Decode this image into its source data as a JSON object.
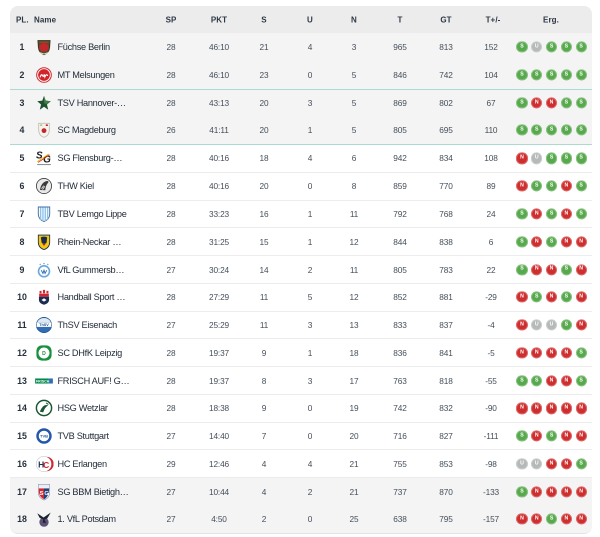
{
  "table": {
    "columns": [
      {
        "key": "pl",
        "label": "PL."
      },
      {
        "key": "name",
        "label": "Name"
      },
      {
        "key": "sp",
        "label": "SP"
      },
      {
        "key": "pkt",
        "label": "PKT"
      },
      {
        "key": "s",
        "label": "S"
      },
      {
        "key": "u",
        "label": "U"
      },
      {
        "key": "n",
        "label": "N"
      },
      {
        "key": "t",
        "label": "T"
      },
      {
        "key": "gt",
        "label": "GT"
      },
      {
        "key": "diff",
        "label": "T+/-"
      },
      {
        "key": "erg",
        "label": "Erg."
      }
    ],
    "result_colors": {
      "S": "#58a94d",
      "U": "#b6b9b9",
      "N": "#cf2e2e"
    },
    "zone_background": "#f4f4f4",
    "divider_teal": "#abd9d3",
    "divider_gray": "#ececec",
    "rows": [
      {
        "pl": "1",
        "name": "Füchse Berlin",
        "logo": "fuechse-berlin",
        "sp": "28",
        "pkt": "46:10",
        "s": "21",
        "u": "4",
        "n": "3",
        "t": "965",
        "gt": "813",
        "diff": "152",
        "erg": [
          "S",
          "U",
          "S",
          "S",
          "S"
        ],
        "zone": "gray",
        "divider": "none"
      },
      {
        "pl": "2",
        "name": "MT Melsungen",
        "logo": "mt-melsungen",
        "sp": "28",
        "pkt": "46:10",
        "s": "23",
        "u": "0",
        "n": "5",
        "t": "846",
        "gt": "742",
        "diff": "104",
        "erg": [
          "S",
          "S",
          "S",
          "S",
          "S"
        ],
        "zone": "gray",
        "divider": "none"
      },
      {
        "pl": "3",
        "name": "TSV Hannover-…",
        "logo": "tsv-hannover",
        "sp": "28",
        "pkt": "43:13",
        "s": "20",
        "u": "3",
        "n": "5",
        "t": "869",
        "gt": "802",
        "diff": "67",
        "erg": [
          "S",
          "N",
          "N",
          "S",
          "S"
        ],
        "zone": "gray",
        "divider": "teal"
      },
      {
        "pl": "4",
        "name": "SC Magdeburg",
        "logo": "sc-magdeburg",
        "sp": "26",
        "pkt": "41:11",
        "s": "20",
        "u": "1",
        "n": "5",
        "t": "805",
        "gt": "695",
        "diff": "110",
        "erg": [
          "S",
          "S",
          "S",
          "S",
          "S"
        ],
        "zone": "gray",
        "divider": "none"
      },
      {
        "pl": "5",
        "name": "SG Flensburg-…",
        "logo": "sg-flensburg",
        "sp": "28",
        "pkt": "40:16",
        "s": "18",
        "u": "4",
        "n": "6",
        "t": "942",
        "gt": "834",
        "diff": "108",
        "erg": [
          "N",
          "U",
          "S",
          "S",
          "S"
        ],
        "zone": "white",
        "divider": "teal"
      },
      {
        "pl": "6",
        "name": "THW Kiel",
        "logo": "thw-kiel",
        "sp": "28",
        "pkt": "40:16",
        "s": "20",
        "u": "0",
        "n": "8",
        "t": "859",
        "gt": "770",
        "diff": "89",
        "erg": [
          "N",
          "S",
          "S",
          "N",
          "S"
        ],
        "zone": "white",
        "divider": "gray"
      },
      {
        "pl": "7",
        "name": "TBV Lemgo Lippe",
        "logo": "tbv-lemgo",
        "sp": "28",
        "pkt": "33:23",
        "s": "16",
        "u": "1",
        "n": "11",
        "t": "792",
        "gt": "768",
        "diff": "24",
        "erg": [
          "S",
          "N",
          "S",
          "N",
          "S"
        ],
        "zone": "white",
        "divider": "gray"
      },
      {
        "pl": "8",
        "name": "Rhein-Neckar …",
        "logo": "rhein-neckar-loewen",
        "sp": "28",
        "pkt": "31:25",
        "s": "15",
        "u": "1",
        "n": "12",
        "t": "844",
        "gt": "838",
        "diff": "6",
        "erg": [
          "S",
          "N",
          "S",
          "N",
          "N"
        ],
        "zone": "white",
        "divider": "gray"
      },
      {
        "pl": "9",
        "name": "VfL Gummersb…",
        "logo": "vfl-gummersbach",
        "sp": "27",
        "pkt": "30:24",
        "s": "14",
        "u": "2",
        "n": "11",
        "t": "805",
        "gt": "783",
        "diff": "22",
        "erg": [
          "S",
          "N",
          "N",
          "S",
          "N"
        ],
        "zone": "white",
        "divider": "gray"
      },
      {
        "pl": "10",
        "name": "Handball Sport …",
        "logo": "hsv-hamburg",
        "sp": "28",
        "pkt": "27:29",
        "s": "11",
        "u": "5",
        "n": "12",
        "t": "852",
        "gt": "881",
        "diff": "-29",
        "erg": [
          "N",
          "S",
          "N",
          "S",
          "N"
        ],
        "zone": "white",
        "divider": "gray"
      },
      {
        "pl": "11",
        "name": "ThSV Eisenach",
        "logo": "thsv-eisenach",
        "sp": "27",
        "pkt": "25:29",
        "s": "11",
        "u": "3",
        "n": "13",
        "t": "833",
        "gt": "837",
        "diff": "-4",
        "erg": [
          "N",
          "U",
          "U",
          "S",
          "N"
        ],
        "zone": "white",
        "divider": "gray"
      },
      {
        "pl": "12",
        "name": "SC DHfK Leipzig",
        "logo": "dhfk-leipzig",
        "sp": "28",
        "pkt": "19:37",
        "s": "9",
        "u": "1",
        "n": "18",
        "t": "836",
        "gt": "841",
        "diff": "-5",
        "erg": [
          "N",
          "N",
          "N",
          "N",
          "S"
        ],
        "zone": "white",
        "divider": "gray"
      },
      {
        "pl": "13",
        "name": "FRISCH AUF! G…",
        "logo": "frisch-auf",
        "sp": "28",
        "pkt": "19:37",
        "s": "8",
        "u": "3",
        "n": "17",
        "t": "763",
        "gt": "818",
        "diff": "-55",
        "erg": [
          "S",
          "S",
          "N",
          "N",
          "S"
        ],
        "zone": "white",
        "divider": "gray"
      },
      {
        "pl": "14",
        "name": "HSG Wetzlar",
        "logo": "hsg-wetzlar",
        "sp": "28",
        "pkt": "18:38",
        "s": "9",
        "u": "0",
        "n": "19",
        "t": "742",
        "gt": "832",
        "diff": "-90",
        "erg": [
          "N",
          "N",
          "N",
          "N",
          "N"
        ],
        "zone": "white",
        "divider": "gray"
      },
      {
        "pl": "15",
        "name": "TVB Stuttgart",
        "logo": "tvb-stuttgart",
        "sp": "27",
        "pkt": "14:40",
        "s": "7",
        "u": "0",
        "n": "20",
        "t": "716",
        "gt": "827",
        "diff": "-111",
        "erg": [
          "S",
          "N",
          "S",
          "N",
          "N"
        ],
        "zone": "white",
        "divider": "gray"
      },
      {
        "pl": "16",
        "name": "HC Erlangen",
        "logo": "hc-erlangen",
        "sp": "29",
        "pkt": "12:46",
        "s": "4",
        "u": "4",
        "n": "21",
        "t": "755",
        "gt": "853",
        "diff": "-98",
        "erg": [
          "U",
          "U",
          "N",
          "N",
          "S"
        ],
        "zone": "white",
        "divider": "gray"
      },
      {
        "pl": "17",
        "name": "SG BBM Bietigh…",
        "logo": "sg-bbm-bietigheim",
        "sp": "27",
        "pkt": "10:44",
        "s": "4",
        "u": "2",
        "n": "21",
        "t": "737",
        "gt": "870",
        "diff": "-133",
        "erg": [
          "S",
          "N",
          "N",
          "N",
          "N"
        ],
        "zone": "gray",
        "divider": "gray"
      },
      {
        "pl": "18",
        "name": "1. VfL Potsdam",
        "logo": "vfl-potsdam",
        "sp": "27",
        "pkt": "4:50",
        "s": "2",
        "u": "0",
        "n": "25",
        "t": "638",
        "gt": "795",
        "diff": "-157",
        "erg": [
          "N",
          "N",
          "S",
          "N",
          "N"
        ],
        "zone": "gray",
        "divider": "none"
      }
    ]
  },
  "logos": {
    "fuechse-berlin": "<svg viewBox='0 0 18 18'><path d='M3.2 2.8 L14.8 2.8 L14.4 9.2 Q14 14.4 9 16.4 Q4 14.4 3.6 9.2 Z' fill='#4a5226' stroke='#2d2d1c' stroke-width='0.7'/><path d='M5.4 13.6 Q9 16.6 12.6 13.6 L12 15 Q9 17 6 15 Z' fill='#e9e5da'/><ellipse cx='9' cy='9.6' rx='4.7' ry='4' fill='#c1272d'/><path d='M4.6 3.9 h8.8 v1.3 h-8.8 z' fill='#b5342c'/></svg>",
    "mt-melsungen": "<svg viewBox='0 0 18 18'><circle cx='9' cy='9' r='7.4' fill='#d2232a'/><circle cx='9' cy='9' r='6' fill='none' stroke='#ffffff' stroke-width='0.9'/><path d='M5.4 10.8 Q6.6 7.4 7.6 9.6 Q8.6 11.4 9.2 8.4 L9.8 10.8 Q11 7.6 12.4 9.4' stroke='#ffffff' stroke-width='1.1' fill='none' stroke-linecap='round'/></svg>",
    "tsv-hannover": "<svg viewBox='0 0 18 18'><path d='M9 2.2 L10.6 6.8 L15.4 7.4 L11.8 10.4 L13 15.4 L9 12.6 L5 15.4 L6.2 10.4 L2.6 7.4 L7.4 6.8 Z' fill='#1e5130'/><path d='M9 2.2 L10.6 6.8 L15.4 7.4 L11.8 10.4 L9 9 Z' fill='#3f7d46'/></svg>",
    "sc-magdeburg": "<svg viewBox='0 0 18 18'><path d='M4 2.6 H14 V9 Q14 14.3 9 16 Q4 14.3 4 9 Z' fill='#f5f3ed' stroke='#b9b5a9' stroke-width='0.7'/><circle cx='9' cy='9.6' r='2.3' fill='#c1272d'/><rect x='5.3' y='3.7' width='2' height='1.5' fill='#b9c26f'/><rect x='10.7' y='3.7' width='2' height='1.5' fill='#c1272d'/></svg>",
    "sg-flensburg": "<svg viewBox='0 0 18 18'><text x='1.4' y='9.6' font-size='9.4' font-weight='bold' font-style='italic' fill='#1b1b1b' font-family='sans-serif'>S</text><text x='8.2' y='13.4' font-size='9.4' font-weight='bold' font-style='italic' fill='#1b1b1b' font-family='sans-serif'>G</text><path d='M2.6 12.4 L13.6 5.2' stroke='#f0b400' stroke-width='0.9'/><path d='M3.4 13.2 L14.4 6' stroke='#cc2222' stroke-width='0.7'/><path d='M2.5 14.8 h13 v0.9 h-13 z' fill='#1b1b1b' opacity='0.55'/></svg>",
    "thw-kiel": "<svg viewBox='0 0 18 18'><circle cx='9' cy='9' r='7.2' fill='#e9e9e9' stroke='#3c3c3c' stroke-width='0.8'/><path d='M5.2 12.8 Q5.8 7.6 9 5.4 Q12 3.6 13 4.6 Q13.6 5.4 12.2 6.8 Q10.6 8.6 10.2 13 Z' fill='#3a3a3a'/><path d='M6.6 11.5 L8.8 8.6 M7.6 12.4 L9.8 9.2' stroke='#e9e9e9' stroke-width='0.8'/></svg>",
    "tbv-lemgo": "<svg viewBox='0 0 18 18'><path d='M3.6 2.4 H14.4 V9 Q14.4 14 9 16.2 Q3.6 14 3.6 9 Z' fill='#ffffff' stroke='#3f6fa8' stroke-width='0.9'/><path d='M5.8 2.8 V14.6 M8 2.8 V15.8 M10.2 2.8 V15.8 M12.4 2.8 V14.2' stroke='#8fc2e8' stroke-width='1.3'/></svg>",
    "rhein-neckar-loewen": "<svg viewBox='0 0 18 18'><path d='M3.6 2.4 H14.4 V9 Q14.4 14.4 9 16.2 Q3.6 14.4 3.6 9 Z' fill='#f3c812' stroke='#1a2c4e' stroke-width='0.8'/><path d='M6 4.6 Q9 3.2 12 4.6 L11.4 9.8 Q9 11.8 6.8 9.8 Z' fill='#1a2c4e'/><path d='M7.4 10.6 L9 12.8 L10.6 10.6' fill='#c1272d'/></svg>",
    "vfl-gummersbach": "<svg viewBox='0 0 18 18'><circle cx='9' cy='10.2' r='5.2' fill='#ffffff' stroke='#6aa7d8' stroke-width='1.5'/><path d='M6.4 9.2 L8 12.2 L9 9.2 L10 12.2 L11.6 9.2' stroke='#2f6db5' stroke-width='0.9' fill='none'/><circle cx='5.4' cy='3.8' r='0.7' fill='#6aa7d8'/><circle cx='9' cy='3' r='0.7' fill='#6aa7d8'/><circle cx='12.6' cy='3.8' r='0.7' fill='#6aa7d8'/></svg>",
    "hsv-hamburg": "<svg viewBox='0 0 18 18'><path d='M4.2 8.6 H13.8 V11.8 Q13.8 14.8 9 16.4 Q4.2 14.8 4.2 11.8 Z' fill='#1d2d50'/><path d='M6.6 11.8 L9 10.2 L11.4 11.8 L9 13.4 Z' fill='#ffffff'/><path d='M4.8 3.2 h1.9 v2.2 h-1.9 z M8 2.2 h2 v3.2 h-2 z M11.3 3.2 h1.9 v2.2 h-1.9 z' fill='#d22730'/><path d='M4.4 5.8 h9.2 v2.8 h-9.2 z' fill='#d22730'/></svg>",
    "thsv-eisenach": "<svg viewBox='0 0 18 18'><circle cx='9' cy='9' r='7.3' fill='#2f6db5' stroke='#1d4e8c' stroke-width='0.6'/><path d='M2.4 6.6 A7.3 7.3 0 0 1 15.6 6.6 Z' fill='#dce9f5'/><rect x='2' y='6.8' width='14' height='4' fill='#ffffff'/><text x='9' y='10.1' text-anchor='middle' font-size='3.6' font-weight='bold' fill='#1d4e8c' font-family='sans-serif'>ThSV</text></svg>",
    "dhfk-leipzig": "<svg viewBox='0 0 18 18'><rect x='1.8' y='1.8' width='14.4' height='14.4' rx='5' fill='#18903e'/><circle cx='9' cy='9' r='5.2' fill='#ffffff'/><text x='9' y='10.9' text-anchor='middle' font-size='4.8' font-weight='bold' fill='#18903e' font-family='sans-serif'>D</text></svg>",
    "frisch-auf": "<svg viewBox='0 0 18 18'><rect x='0.6' y='6.6' width='13' height='4.8' fill='#00894b'/><rect x='13.6' y='6.6' width='3.8' height='4.8' fill='#2f6db5'/><text x='1.4' y='10.4' font-size='3.4' font-weight='bold' fill='#ffffff' font-family='sans-serif'>FRISCH</text></svg>",
    "hsg-wetzlar": "<svg viewBox='0 0 18 18'><circle cx='9' cy='9' r='7.2' fill='#ffffff' stroke='#1a5632' stroke-width='1.4'/><path d='M5 12.4 Q8.4 4.4 13 6.6 Q10.2 7.6 8.2 13.2 Z' fill='#1a5632'/><path d='M11 4.2 L13.2 5.6' stroke='#1a5632' stroke-width='1'/></svg>",
    "tvb-stuttgart": "<svg viewBox='0 0 18 18'><circle cx='9' cy='9' r='7.3' fill='#2358a8'/><circle cx='9' cy='9' r='5' fill='#ffffff'/><text x='9' y='10.6' text-anchor='middle' font-size='3.8' font-weight='bold' fill='#2358a8' font-family='sans-serif'>TVB</text></svg>",
    "hc-erlangen": "<svg viewBox='0 0 18 18'><circle cx='9' cy='9' r='7.3' fill='#ffffff' stroke='#c9c9c9' stroke-width='0.6'/><path d='M11.4 2.2 A7.3 7.3 0 0 1 11.4 15.8 A5.6 5.6 0 0 0 11.4 2.2' fill='#d22730'/><text x='3.4' y='12.2' font-size='8' font-weight='bold' fill='#1d3557' font-family='sans-serif'>H</text><text x='8.2' y='12.6' font-size='8' font-weight='bold' fill='#d22730' font-family='sans-serif'>C</text></svg>",
    "sg-bbm-bietigheim": "<svg viewBox='0 0 18 18'><path d='M3.6 1.8 H14.4 V9 Q14.4 14.6 9 16.6 Q3.6 14.6 3.6 9 Z' fill='#ffffff' stroke='#8a93a8' stroke-width='0.6'/><rect x='4.2' y='2.4' width='9.6' height='2.6' fill='#e9edf4'/><path d='M4.1 5.6 H9 V15.9 Q4.6 13.9 4.1 9 Z' fill='#d22730'/><path d='M9 5.6 H13.9 Q13.6 13.9 9 15.9 Z' fill='#24407c'/><text x='4.9' y='12' font-size='5.4' font-weight='bold' fill='#ffffff' font-family='sans-serif'>S</text><text x='9.4' y='12' font-size='5.4' font-weight='bold' fill='#ffffff' font-family='sans-serif'>G</text></svg>",
    "vfl-potsdam": "<svg viewBox='0 0 18 18'><circle cx='9' cy='12' r='4.4' fill='#5c5273'/><path d='M2.6 3.6 L8.6 7.6 L15.4 2.8 L12.2 8.4 L9.2 9.6 L5 8 Z' fill='#1d2233'/><path d='M8.6 7.6 L11 13.2 L7.8 12.2 Z' fill='#1d2233'/></svg>"
  }
}
